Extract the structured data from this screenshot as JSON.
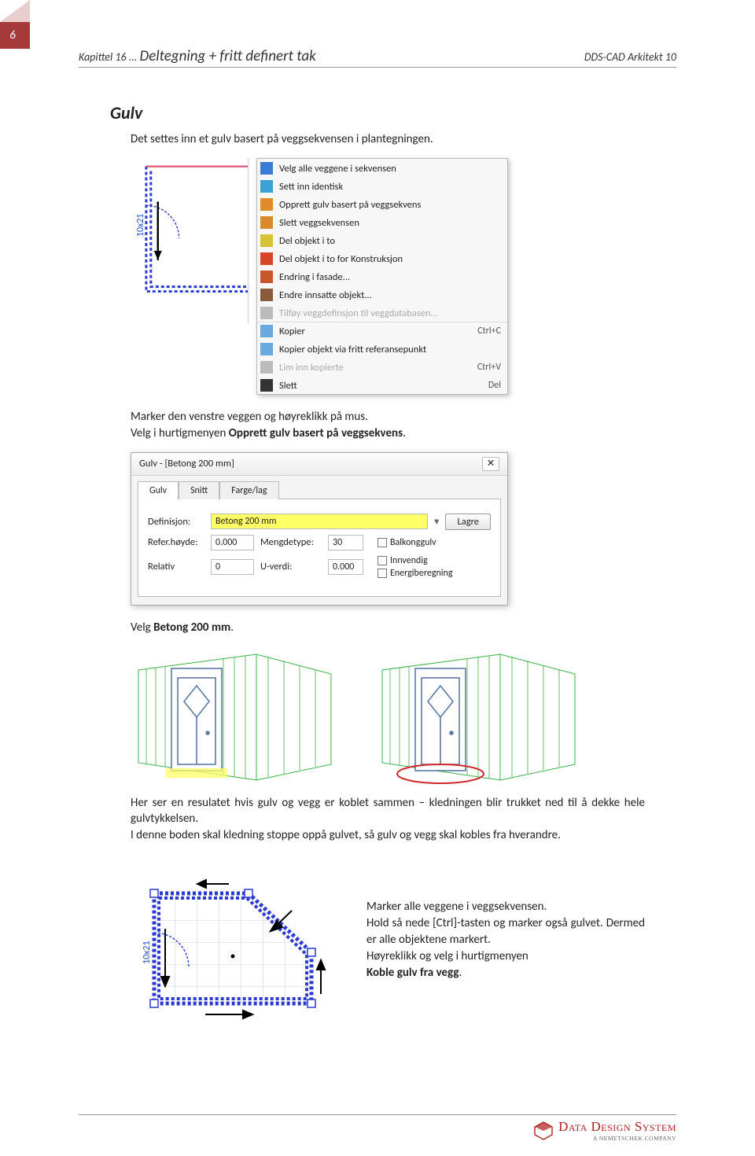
{
  "page_number": "6",
  "header": {
    "chapter_prefix": "Kapittel 16 ... ",
    "chapter_title": "Deltegning + fritt definert tak",
    "product": "DDS-CAD Arkitekt 10"
  },
  "section_title": "Gulv",
  "intro": "Det settes inn et gulv basert på veggsekvensen i plantegningen.",
  "plan_label": "10x21",
  "context_menu": {
    "items": [
      {
        "icon": "#3a7bd5",
        "label": "Velg alle veggene i sekvensen"
      },
      {
        "icon": "#3aa0d5",
        "label": "Sett inn identisk"
      },
      {
        "icon": "#e08a2a",
        "label": "Opprett gulv basert på veggsekvens"
      },
      {
        "icon": "#d98a2a",
        "label": "Slett veggsekvensen"
      },
      {
        "icon": "#d6c233",
        "label": "Del objekt i to"
      },
      {
        "icon": "#d6452a",
        "label": "Del objekt i to for Konstruksjon"
      },
      {
        "icon": "#c6572a",
        "label": "Endring i fasade..."
      },
      {
        "icon": "#8a5a3a",
        "label": "Endre innsatte objekt..."
      },
      {
        "icon": "#bbbbbb",
        "label": "Tilføy veggdefinsjon til veggdatabasen...",
        "disabled": true
      }
    ],
    "sep_items": [
      {
        "icon": "#6aa8e0",
        "label": "Kopier",
        "shortcut": "Ctrl+C"
      },
      {
        "icon": "#6aa8e0",
        "label": "Kopier objekt via fritt referansepunkt"
      },
      {
        "icon": "#bbbbbb",
        "label": "Lim inn kopierte",
        "shortcut": "Ctrl+V",
        "disabled": true
      },
      {
        "icon": "#333333",
        "label": "Slett",
        "shortcut": "Del"
      }
    ]
  },
  "para_marker_pre": "Marker den venstre veggen og høyreklikk på mus.",
  "para_marker_line2a": "Velg i hurtigmenyen ",
  "para_marker_bold": "Opprett gulv basert på veggsekvens",
  "dot": ".",
  "dialog": {
    "title": "Gulv - [Betong 200 mm]",
    "tabs": [
      "Gulv",
      "Snitt",
      "Farge/lag"
    ],
    "def_label": "Definisjon:",
    "def_value": "Betong 200 mm",
    "save_btn": "Lagre",
    "ref_label": "Refer.høyde:",
    "ref_value": "0.000",
    "mtype_label": "Mengdetype:",
    "mtype_value": "30",
    "rel_label": "Relativ",
    "rel_value": "0",
    "uverdi_label": "U-verdi:",
    "uverdi_value": "0.000",
    "checks": [
      "Balkonggulv",
      "Innvendig",
      "Energiberegning"
    ]
  },
  "para_choose_a": "Velg ",
  "para_choose_bold": "Betong 200 mm",
  "para_result": "Her ser en resulatet hvis gulv og vegg er koblet sammen – kledningen blir trukket ned til å dekke hele gulvtykkelsen.",
  "para_result2": "I denne boden skal kledning stoppe oppå gulvet, så gulv og vegg skal kobles fra hverandre.",
  "bottom_plan_label": "10x21",
  "sidenote_l1": "Marker alle veggene i veggsekvensen.",
  "sidenote_l2": "Hold så nede [Ctrl]-tasten og marker også gulvet. Dermed er alle objektene markert.",
  "sidenote_l3": "Høyreklikk og velg i hurtigmenyen",
  "sidenote_bold": "Koble gulv fra vegg",
  "footer": {
    "company": "Data Design System",
    "tagline": "A NEMETSCHEK COMPANY"
  },
  "colors": {
    "brand_red": "#a63a3a",
    "wall_green": "#3cb04a",
    "door_blue": "#5a7aa6",
    "plan_blue": "#2a3ad0",
    "highlight_yellow": "#ffff66",
    "ellipse_red": "#d02a2a"
  }
}
